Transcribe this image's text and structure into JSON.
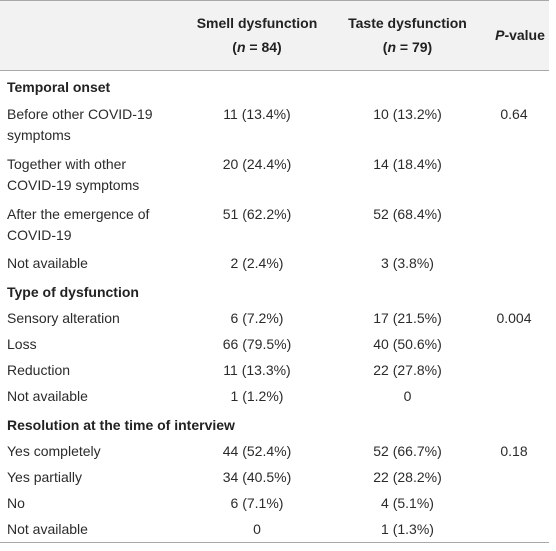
{
  "headers": {
    "smell": {
      "line1": "Smell dysfunction",
      "n_var": "n",
      "n_rest": " = 84)"
    },
    "taste": {
      "line1": "Taste dysfunction",
      "n_var": "n",
      "n_rest": " = 79)"
    },
    "pvalue": {
      "p": "P",
      "rest": "-value"
    }
  },
  "sections": [
    {
      "title": "Temporal onset",
      "p_value": "0.64",
      "rows": [
        {
          "label": "Before other COVID-19 symptoms",
          "smell": "11 (13.4%)",
          "taste": "10 (13.2%)"
        },
        {
          "label": "Together with other COVID-19 symptoms",
          "smell": "20 (24.4%)",
          "taste": "14 (18.4%)"
        },
        {
          "label": "After the emergence of COVID-19",
          "smell": "51 (62.2%)",
          "taste": "52 (68.4%)"
        },
        {
          "label": "Not available",
          "smell": "2 (2.4%)",
          "taste": "3 (3.8%)"
        }
      ]
    },
    {
      "title": "Type of dysfunction",
      "p_value": "0.004",
      "rows": [
        {
          "label": "Sensory alteration",
          "smell": "6 (7.2%)",
          "taste": "17 (21.5%)"
        },
        {
          "label": "Loss",
          "smell": "66 (79.5%)",
          "taste": "40 (50.6%)"
        },
        {
          "label": "Reduction",
          "smell": "11 (13.3%)",
          "taste": "22 (27.8%)"
        },
        {
          "label": "Not available",
          "smell": "1 (1.2%)",
          "taste": "0"
        }
      ]
    },
    {
      "title": "Resolution at the time of interview",
      "p_value": "0.18",
      "rows": [
        {
          "label": "Yes completely",
          "smell": "44 (52.4%)",
          "taste": "52 (66.7%)"
        },
        {
          "label": "Yes partially",
          "smell": "34 (40.5%)",
          "taste": "22 (28.2%)"
        },
        {
          "label": "No",
          "smell": "6 (7.1%)",
          "taste": "4 (5.1%)"
        },
        {
          "label": "Not available",
          "smell": "0",
          "taste": "1 (1.3%)"
        }
      ]
    }
  ]
}
